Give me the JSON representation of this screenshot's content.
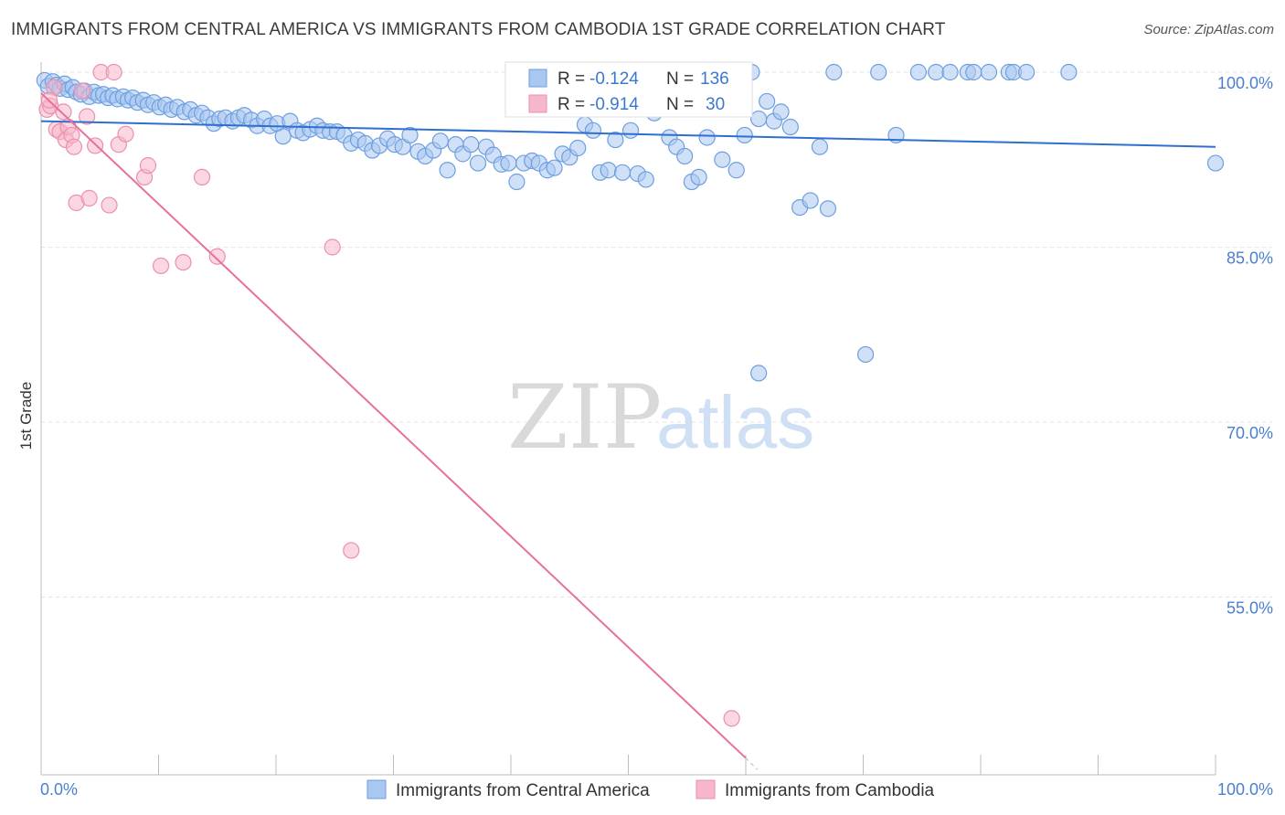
{
  "title": "IMMIGRANTS FROM CENTRAL AMERICA VS IMMIGRANTS FROM CAMBODIA 1ST GRADE CORRELATION CHART",
  "source": "Source: ZipAtlas.com",
  "watermark": {
    "part1": "ZIP",
    "part2": "atlas"
  },
  "colors": {
    "blue_fill": "#a9c7f0",
    "blue_stroke": "#6d9fe0",
    "blue_line": "#2f6fd1",
    "pink_fill": "#f7b7cb",
    "pink_stroke": "#ec8fae",
    "pink_line": "#e8709a",
    "tick_text": "#4a7fd0",
    "grid": "#e3e3e3"
  },
  "stats": {
    "r_label": "R =",
    "n_label": "N =",
    "blue": {
      "r": "-0.124",
      "n": "136"
    },
    "pink": {
      "r": "-0.914",
      "n": "30"
    }
  },
  "legend": {
    "blue_label": "Immigrants from Central America",
    "pink_label": "Immigrants from Cambodia"
  },
  "chart_data": {
    "type": "scatter",
    "title": "IMMIGRANTS FROM CENTRAL AMERICA VS IMMIGRANTS FROM CAMBODIA 1ST GRADE CORRELATION CHART",
    "xlabel": "",
    "ylabel": "1st Grade",
    "xlim": [
      0,
      100
    ],
    "ylim": [
      40,
      101.5
    ],
    "x_tick_labels": [
      "0.0%",
      "100.0%"
    ],
    "y_tick_labels": [
      "100.0%",
      "85.0%",
      "70.0%",
      "55.0%"
    ],
    "y_ticks": [
      100,
      85,
      70,
      55
    ],
    "grid": true,
    "legend_position": "bottom",
    "series": [
      {
        "name": "Immigrants from Central America",
        "color": "#a9c7f0",
        "trendline": {
          "x": [
            0,
            100
          ],
          "y": [
            95.8,
            93.6
          ]
        },
        "points": [
          [
            0.3,
            99.3
          ],
          [
            0.6,
            98.8
          ],
          [
            1,
            99.2
          ],
          [
            1.3,
            98.9
          ],
          [
            1.6,
            98.6
          ],
          [
            2,
            99.0
          ],
          [
            2.3,
            98.5
          ],
          [
            2.7,
            98.7
          ],
          [
            3,
            98.3
          ],
          [
            3.4,
            98.1
          ],
          [
            3.7,
            98.4
          ],
          [
            4.1,
            97.9
          ],
          [
            4.5,
            98.3
          ],
          [
            4.9,
            98.0
          ],
          [
            5.3,
            98.1
          ],
          [
            5.7,
            97.8
          ],
          [
            6.1,
            98.0
          ],
          [
            6.5,
            97.7
          ],
          [
            7,
            97.9
          ],
          [
            7.4,
            97.6
          ],
          [
            7.8,
            97.8
          ],
          [
            8.2,
            97.4
          ],
          [
            8.7,
            97.6
          ],
          [
            9.1,
            97.2
          ],
          [
            9.6,
            97.4
          ],
          [
            10.1,
            97.0
          ],
          [
            10.6,
            97.2
          ],
          [
            11.1,
            96.8
          ],
          [
            11.6,
            97.0
          ],
          [
            12.2,
            96.6
          ],
          [
            12.7,
            96.8
          ],
          [
            13.2,
            96.3
          ],
          [
            13.7,
            96.5
          ],
          [
            14.2,
            96.1
          ],
          [
            14.7,
            95.6
          ],
          [
            15.2,
            96.0
          ],
          [
            15.7,
            96.1
          ],
          [
            16.3,
            95.8
          ],
          [
            16.8,
            96.1
          ],
          [
            17.3,
            96.3
          ],
          [
            17.9,
            95.9
          ],
          [
            18.4,
            95.4
          ],
          [
            19,
            96.0
          ],
          [
            19.5,
            95.4
          ],
          [
            20.1,
            95.6
          ],
          [
            20.6,
            94.5
          ],
          [
            21.2,
            95.8
          ],
          [
            21.8,
            95.0
          ],
          [
            22.3,
            94.8
          ],
          [
            22.9,
            95.1
          ],
          [
            23.5,
            95.4
          ],
          [
            24,
            95.0
          ],
          [
            24.6,
            94.9
          ],
          [
            25.2,
            94.9
          ],
          [
            25.8,
            94.6
          ],
          [
            26.4,
            93.9
          ],
          [
            27,
            94.2
          ],
          [
            27.6,
            93.9
          ],
          [
            28.2,
            93.3
          ],
          [
            28.8,
            93.7
          ],
          [
            29.5,
            94.3
          ],
          [
            30.1,
            93.8
          ],
          [
            30.8,
            93.6
          ],
          [
            31.4,
            94.6
          ],
          [
            32.1,
            93.2
          ],
          [
            32.7,
            92.8
          ],
          [
            33.4,
            93.3
          ],
          [
            34,
            94.1
          ],
          [
            34.6,
            91.6
          ],
          [
            35.3,
            93.8
          ],
          [
            35.9,
            93.0
          ],
          [
            36.6,
            93.8
          ],
          [
            37.2,
            92.2
          ],
          [
            37.9,
            93.6
          ],
          [
            38.5,
            92.9
          ],
          [
            39.2,
            92.1
          ],
          [
            39.8,
            92.2
          ],
          [
            40.5,
            90.6
          ],
          [
            41.1,
            92.2
          ],
          [
            41.8,
            92.4
          ],
          [
            42.4,
            92.2
          ],
          [
            43.1,
            91.6
          ],
          [
            43.7,
            91.8
          ],
          [
            44.4,
            93.0
          ],
          [
            45,
            92.7
          ],
          [
            45.7,
            93.5
          ],
          [
            46.3,
            95.5
          ],
          [
            47,
            95.0
          ],
          [
            47.6,
            91.4
          ],
          [
            48.3,
            91.6
          ],
          [
            48.9,
            94.2
          ],
          [
            49.5,
            91.4
          ],
          [
            50.2,
            95.0
          ],
          [
            50.8,
            91.3
          ],
          [
            51.5,
            90.8
          ],
          [
            52.2,
            96.5
          ],
          [
            52.8,
            97.4
          ],
          [
            53.5,
            94.4
          ],
          [
            54.1,
            93.6
          ],
          [
            54.8,
            92.8
          ],
          [
            55.4,
            90.6
          ],
          [
            56,
            91.0
          ],
          [
            56.7,
            94.4
          ],
          [
            57.3,
            100.0
          ],
          [
            58,
            92.5
          ],
          [
            58.6,
            100.0
          ],
          [
            59.2,
            91.6
          ],
          [
            59.9,
            94.6
          ],
          [
            60.5,
            100.0
          ],
          [
            61.1,
            96.0
          ],
          [
            61.8,
            97.5
          ],
          [
            62.4,
            95.8
          ],
          [
            63,
            96.6
          ],
          [
            63.8,
            95.3
          ],
          [
            64.6,
            88.4
          ],
          [
            65.5,
            89.0
          ],
          [
            66.3,
            93.6
          ],
          [
            67,
            88.3
          ],
          [
            67.5,
            100.0
          ],
          [
            70.2,
            75.8
          ],
          [
            71.3,
            100.0
          ],
          [
            72.8,
            94.6
          ],
          [
            74.7,
            100.0
          ],
          [
            76.2,
            100.0
          ],
          [
            77.4,
            100.0
          ],
          [
            78.9,
            100.0
          ],
          [
            79.4,
            100.0
          ],
          [
            80.7,
            100.0
          ],
          [
            82.4,
            100.0
          ],
          [
            82.8,
            100.0
          ],
          [
            83.9,
            100.0
          ],
          [
            87.5,
            100.0
          ],
          [
            100,
            92.2
          ],
          [
            61.1,
            74.2
          ]
        ]
      },
      {
        "name": "Immigrants from Cambodia",
        "color": "#f7b7cb",
        "trendline": {
          "x": [
            0,
            60
          ],
          "y": [
            98.2,
            41.2
          ]
        },
        "points": [
          [
            0.5,
            96.8
          ],
          [
            0.8,
            97.1
          ],
          [
            1.1,
            98.7
          ],
          [
            1.3,
            95.1
          ],
          [
            1.6,
            94.9
          ],
          [
            1.9,
            96.6
          ],
          [
            2.1,
            94.2
          ],
          [
            2.3,
            95.3
          ],
          [
            2.6,
            94.6
          ],
          [
            2.8,
            93.6
          ],
          [
            3,
            88.8
          ],
          [
            3.5,
            98.4
          ],
          [
            3.9,
            96.2
          ],
          [
            4.1,
            89.2
          ],
          [
            4.6,
            93.7
          ],
          [
            5.1,
            100.0
          ],
          [
            5.8,
            88.6
          ],
          [
            6.2,
            100.0
          ],
          [
            6.6,
            93.8
          ],
          [
            7.2,
            94.7
          ],
          [
            8.8,
            91.0
          ],
          [
            9.1,
            92.0
          ],
          [
            10.2,
            83.4
          ],
          [
            12.1,
            83.7
          ],
          [
            13.7,
            91.0
          ],
          [
            15,
            84.2
          ],
          [
            24.8,
            85.0
          ],
          [
            26.4,
            59.0
          ],
          [
            58.8,
            44.6
          ],
          [
            0.7,
            97.6
          ]
        ]
      }
    ]
  }
}
